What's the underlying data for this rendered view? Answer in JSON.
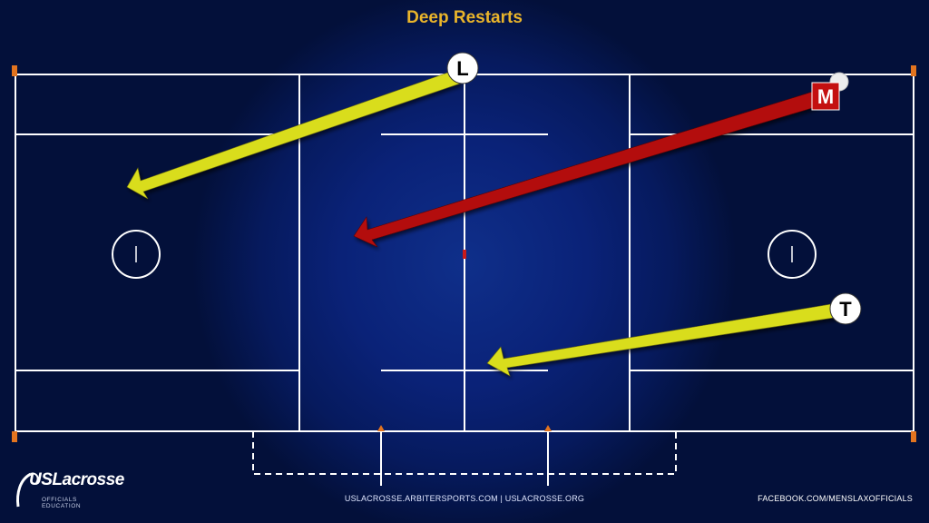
{
  "title": "Deep Restarts",
  "officials": {
    "lead": "L",
    "middle": "M",
    "trail": "T"
  },
  "colors": {
    "lead_arrow": "#d9dd1f",
    "trail_arrow": "#d9dd1f",
    "middle_arrow": "#b30d0d",
    "title": "#e9b42b",
    "field_lines": "#ffffff",
    "pylons": "#e3741f"
  },
  "footer": {
    "center": "USLACROSSE.ARBITERSPORTS.COM | USLACROSSE.ORG",
    "right": "FACEBOOK.COM/MENSLAXOFFICIALS"
  },
  "logo": {
    "main": "USLacrosse",
    "sub": "OFFICIALS EDUCATION"
  }
}
